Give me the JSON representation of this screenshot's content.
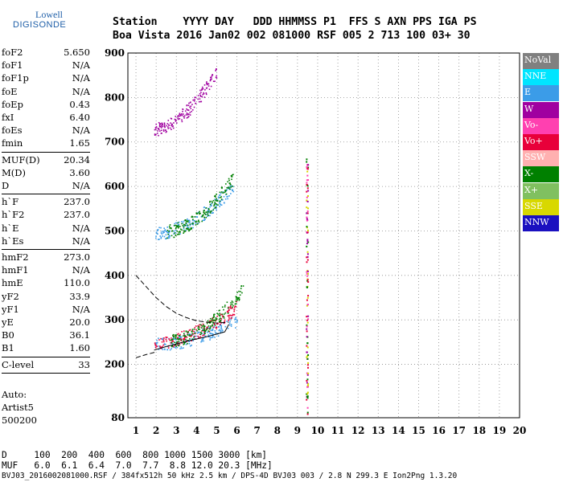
{
  "logo": {
    "top_text": "Lowell",
    "bottom_text": "DIGISONDE"
  },
  "header": {
    "line1": "Station    YYYY DAY   DDD HHMMSS P1  FFS S AXN PPS IGA PS",
    "line2": "Boa Vista 2016 Jan02 002 081000 RSF 005 2 713 100 03+ 30"
  },
  "params": {
    "group1": [
      {
        "label": "foF2",
        "value": "5.650"
      },
      {
        "label": "foF1",
        "value": "N/A"
      },
      {
        "label": "foF1p",
        "value": "N/A"
      },
      {
        "label": "foE",
        "value": "N/A"
      },
      {
        "label": "foEp",
        "value": "0.43"
      },
      {
        "label": "fxI",
        "value": "6.40"
      },
      {
        "label": "foEs",
        "value": "N/A"
      },
      {
        "label": "fmin",
        "value": "1.65"
      }
    ],
    "group2": [
      {
        "label": "MUF(D)",
        "value": "20.34"
      },
      {
        "label": "M(D)",
        "value": "3.60"
      },
      {
        "label": "D",
        "value": "N/A"
      }
    ],
    "group3": [
      {
        "label": "h`F",
        "value": "237.0"
      },
      {
        "label": "h`F2",
        "value": "237.0"
      },
      {
        "label": "h`E",
        "value": "N/A"
      },
      {
        "label": "h`Es",
        "value": "N/A"
      }
    ],
    "group4": [
      {
        "label": "hmF2",
        "value": "273.0"
      },
      {
        "label": "hmF1",
        "value": "N/A"
      },
      {
        "label": "hmE",
        "value": "110.0"
      },
      {
        "label": "yF2",
        "value": "33.9"
      },
      {
        "label": "yF1",
        "value": "N/A"
      },
      {
        "label": "yE",
        "value": "20.0"
      },
      {
        "label": "B0",
        "value": "36.1"
      },
      {
        "label": "B1",
        "value": "1.60"
      }
    ],
    "group5": [
      {
        "label": "C-level",
        "value": "33"
      }
    ]
  },
  "auto": {
    "line1": "Auto:",
    "line2": "Artist5",
    "line3": "500200"
  },
  "footer": {
    "d_line": "D     100  200  400  600  800 1000 1500 3000 [km]",
    "muf_line": "MUF   6.0  6.1  6.4  7.0  7.7  8.8 12.0 20.3 [MHz]",
    "file_line": "BVJ03_2016002081000.RSF / 384fx512h 50 kHz 2.5 km / DPS-4D BVJ03 003 / 2.8 N 299.3 E Ion2Png 1.3.20"
  },
  "legend": [
    {
      "label": "NoVal",
      "color": "#808080"
    },
    {
      "label": "NNE",
      "color": "#00e5ff"
    },
    {
      "label": "E",
      "color": "#3b9ce8"
    },
    {
      "label": "W",
      "color": "#a000a0"
    },
    {
      "label": "Vo-",
      "color": "#ff40b0"
    },
    {
      "label": "Vo+",
      "color": "#e8003a"
    },
    {
      "label": "SSW",
      "color": "#ffb0b0"
    },
    {
      "label": "X-",
      "color": "#008000"
    },
    {
      "label": "X+",
      "color": "#80c060"
    },
    {
      "label": "SSE",
      "color": "#d8d800"
    },
    {
      "label": "NNW",
      "color": "#1a10c0"
    }
  ],
  "chart_data": {
    "type": "scatter",
    "xlabel": "",
    "ylabel": "",
    "xlim": [
      0.6,
      20
    ],
    "ylim": [
      80,
      900
    ],
    "x_ticks": [
      1,
      2,
      3,
      4,
      5,
      6,
      7,
      8,
      9,
      10,
      11,
      12,
      13,
      14,
      15,
      16,
      17,
      18,
      19,
      20
    ],
    "y_ticks": [
      80,
      200,
      300,
      400,
      500,
      600,
      700,
      800,
      900
    ],
    "grid": "dotted",
    "traces": [
      {
        "name": "F2-1hop",
        "color": "#3b9ce8",
        "f_start": 1.9,
        "f_end": 6.0,
        "h_start": 245,
        "h_end": 300
      },
      {
        "name": "F2-1hop-O",
        "color": "#e8003a",
        "f_start": 1.9,
        "f_end": 6.0,
        "h_start": 250,
        "h_end": 330
      },
      {
        "name": "F2-1hop-X",
        "color": "#008000",
        "f_start": 2.7,
        "f_end": 6.3,
        "h_start": 255,
        "h_end": 370
      },
      {
        "name": "F2-2hop",
        "color": "#3b9ce8",
        "f_start": 1.9,
        "f_end": 5.8,
        "h_start": 495,
        "h_end": 600
      },
      {
        "name": "F2-2hop-X",
        "color": "#008000",
        "f_start": 2.5,
        "f_end": 5.8,
        "h_start": 500,
        "h_end": 620
      },
      {
        "name": "F2-3hop",
        "color": "#a000a0",
        "f_start": 1.9,
        "f_end": 5.0,
        "h_start": 730,
        "h_end": 860
      }
    ],
    "interference_line": {
      "f": 9.45,
      "h_min": 85,
      "h_max": 670
    },
    "profile_lines": [
      {
        "style": "solid",
        "points": [
          [
            1.9,
            232
          ],
          [
            2.5,
            240
          ],
          [
            3.0,
            246
          ],
          [
            3.5,
            252
          ],
          [
            4.0,
            257
          ],
          [
            4.5,
            262
          ],
          [
            5.0,
            268
          ],
          [
            5.4,
            273
          ],
          [
            5.6,
            290
          ]
        ]
      },
      {
        "style": "dashed",
        "points": [
          [
            1.0,
            400
          ],
          [
            1.5,
            375
          ],
          [
            2.0,
            350
          ],
          [
            2.5,
            330
          ],
          [
            3.0,
            315
          ],
          [
            3.5,
            305
          ],
          [
            4.0,
            298
          ],
          [
            4.5,
            295
          ],
          [
            5.0,
            293
          ],
          [
            5.6,
            295
          ]
        ]
      },
      {
        "style": "dashed",
        "points": [
          [
            1.0,
            215
          ],
          [
            1.5,
            222
          ],
          [
            2.0,
            228
          ]
        ]
      }
    ]
  }
}
